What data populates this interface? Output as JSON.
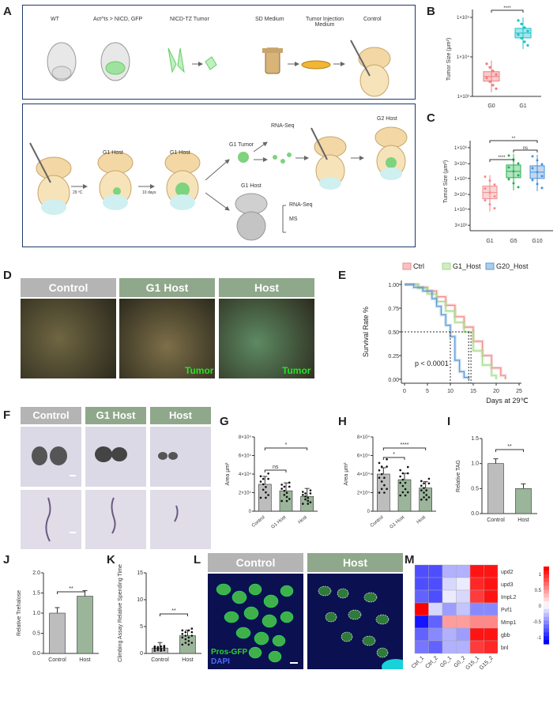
{
  "panels": {
    "A": "A",
    "B": "B",
    "C": "C",
    "D": "D",
    "E": "E",
    "F": "F",
    "G": "G",
    "H": "H",
    "I": "I",
    "J": "J",
    "K": "K",
    "L": "L",
    "M": "M"
  },
  "schemeA_top": {
    "wt": "WT",
    "act": "Act^ts > NICD, GFP",
    "nicd": "NICD-TZ Tumor",
    "sd": "SD Medium",
    "tim": "Tumor Injection Medium",
    "control": "Control"
  },
  "schemeA_bottom": {
    "g1host1": "G1 Host",
    "g1host2": "G1 Host",
    "temp": "29 ºC",
    "days": "10 days",
    "g1tumor": "G1 Tumor",
    "rnaseq1": "RNA-Seq",
    "g2host": "G2 Host",
    "g1host3": "G1 Host",
    "rnaseq2": "RNA-Seq",
    "ms": "MS"
  },
  "panelD": {
    "control": "Control",
    "g1host": "G1 Host",
    "host": "Host",
    "tumor1": "Tumor",
    "tumor2": "Tumor"
  },
  "panelF": {
    "control": "Control",
    "g1host": "G1 Host",
    "host": "Host"
  },
  "panelL": {
    "control": "Control",
    "host": "Host",
    "pros": "Pros-GFP",
    "dapi": "DAPI"
  },
  "colors": {
    "g0": "#f07b7b",
    "g1": "#19c2c9",
    "g5": "#22b24c",
    "g10": "#4a90d9",
    "ctrl": "#f08a8a",
    "g1host": "#a6d98a",
    "g20host": "#5b9bd5",
    "grey_bar": "#bdbdbd",
    "green_bar": "#9bb59a",
    "header_grey": "#b4b4b4",
    "header_green": "#8fa88b"
  },
  "chart_data": [
    {
      "panel": "B",
      "type": "box",
      "ylabel": "Tumor Size (µm²)",
      "yscale": "log",
      "yticks": [
        "1×10³",
        "1×10⁴",
        "1×10⁵"
      ],
      "categories": [
        "G0",
        "G1"
      ],
      "medians": [
        3200,
        40000
      ],
      "significance": "****"
    },
    {
      "panel": "C",
      "type": "box",
      "ylabel": "Tumor Size (µm²)",
      "yscale": "log",
      "yticks": [
        "3×10³",
        "1×10⁴",
        "3×10⁴",
        "1×10⁵",
        "3×10⁵",
        "1×10⁶"
      ],
      "categories": [
        "G1",
        "G5",
        "G10"
      ],
      "medians": [
        35000,
        170000,
        160000
      ],
      "significance": [
        "****",
        "**",
        "ns"
      ]
    },
    {
      "panel": "E",
      "type": "line",
      "ylabel": "Survival Rate %",
      "xlabel": "Days at 29℃",
      "legend": [
        "Ctrl",
        "G1_Host",
        "G20_Host"
      ],
      "xticks": [
        "0",
        "5",
        "10",
        "15",
        "20",
        "25"
      ],
      "yticks": [
        "0.00",
        "0.25",
        "0.50",
        "0.75",
        "1.00"
      ],
      "annotation": "p < 0.0001",
      "series": [
        {
          "name": "Ctrl",
          "x": [
            0,
            3,
            5,
            7,
            9,
            11,
            13,
            15,
            17,
            19,
            21,
            22
          ],
          "y": [
            1,
            0.97,
            0.93,
            0.87,
            0.78,
            0.66,
            0.55,
            0.4,
            0.25,
            0.12,
            0.04,
            0
          ]
        },
        {
          "name": "G1_Host",
          "x": [
            0,
            3,
            5,
            7,
            9,
            11,
            13,
            15,
            17,
            19,
            20
          ],
          "y": [
            1,
            0.96,
            0.9,
            0.82,
            0.72,
            0.6,
            0.5,
            0.3,
            0.15,
            0.04,
            0
          ]
        },
        {
          "name": "G20_Host",
          "x": [
            0,
            2,
            4,
            6,
            7,
            8,
            9,
            10,
            11,
            12,
            13,
            14
          ],
          "y": [
            1,
            0.97,
            0.93,
            0.85,
            0.77,
            0.68,
            0.57,
            0.45,
            0.2,
            0.08,
            0.02,
            0
          ]
        }
      ]
    },
    {
      "panel": "G",
      "type": "bar",
      "ylabel": "Area µm²",
      "categories": [
        "Control",
        "G1 Host",
        "Host"
      ],
      "yticks": [
        "0",
        "2×10⁴",
        "4×10⁴",
        "6×10⁴",
        "8×10⁴"
      ],
      "ylim": [
        0,
        80000
      ],
      "values": [
        29000,
        22000,
        16000
      ],
      "significance": [
        "ns",
        "*"
      ]
    },
    {
      "panel": "H",
      "type": "bar",
      "ylabel": "Area µm²",
      "categories": [
        "Control",
        "G1 Host",
        "Host"
      ],
      "yticks": [
        "0",
        "2×10⁴",
        "4×10⁴",
        "6×10⁴",
        "8×10⁴"
      ],
      "ylim": [
        0,
        80000
      ],
      "values": [
        40000,
        34000,
        25000
      ],
      "significance": [
        "*",
        "****"
      ]
    },
    {
      "panel": "I",
      "type": "bar",
      "ylabel": "Relative TAG",
      "categories": [
        "Control",
        "Host"
      ],
      "yticks": [
        "0.0",
        "0.5",
        "1.0",
        "1.5"
      ],
      "ylim": [
        0,
        1.5
      ],
      "values": [
        1.0,
        0.5
      ],
      "significance": "**"
    },
    {
      "panel": "J",
      "type": "bar",
      "ylabel": "Relative Trehalose",
      "categories": [
        "Control",
        "Host"
      ],
      "yticks": [
        "0.0",
        "0.5",
        "1.0",
        "1.5",
        "2.0"
      ],
      "ylim": [
        0,
        2.0
      ],
      "values": [
        1.0,
        1.42
      ],
      "significance": "**"
    },
    {
      "panel": "K",
      "type": "bar",
      "ylabel": "Climbing Assay Relative Spending Time",
      "categories": [
        "Control",
        "Host"
      ],
      "yticks": [
        "0",
        "5",
        "10",
        "15"
      ],
      "ylim": [
        0,
        15
      ],
      "values": [
        1.0,
        3.3
      ],
      "significance": "**"
    },
    {
      "panel": "M",
      "type": "heatmap",
      "columns": [
        "Ctrl_1",
        "Ctrl_2",
        "G0_1",
        "G0_2",
        "G15_1",
        "G15_2"
      ],
      "rows": [
        "upd2",
        "upd3",
        "ImpL2",
        "Pvf1",
        "Mmp1",
        "gbb",
        "bnl"
      ],
      "values": [
        [
          -0.9,
          -0.9,
          -0.4,
          -0.4,
          1.2,
          1.2
        ],
        [
          -0.9,
          -0.9,
          -0.2,
          -0.1,
          1.1,
          1.2
        ],
        [
          -0.8,
          -0.9,
          -0.1,
          -0.2,
          1.0,
          1.2
        ],
        [
          1.3,
          -0.2,
          -0.5,
          -0.3,
          -0.6,
          -0.6
        ],
        [
          -1.2,
          -0.8,
          0.5,
          0.5,
          0.6,
          0.6
        ],
        [
          -0.8,
          -0.6,
          -0.4,
          -0.5,
          1.2,
          1.2
        ],
        [
          -0.7,
          -0.8,
          -0.4,
          -0.4,
          1.0,
          1.1
        ]
      ],
      "colorbar": [
        "1",
        "0.5",
        "0",
        "-0.5",
        "-1"
      ]
    }
  ]
}
